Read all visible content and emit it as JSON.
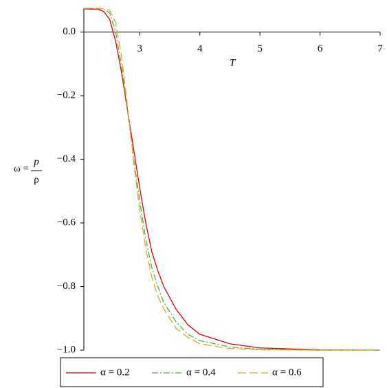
{
  "chart_data": {
    "type": "line",
    "xlabel": "T",
    "ylabel": {
      "lhs": "ω =",
      "numerator": "p",
      "denominator": "ρ"
    },
    "x": [
      2.07,
      2.3,
      2.4,
      2.5,
      2.6,
      2.7,
      2.8,
      2.9,
      3.0,
      3.1,
      3.2,
      3.3,
      3.4,
      3.6,
      3.8,
      4.0,
      4.5,
      5,
      6,
      7
    ],
    "series": [
      {
        "name": "α = 0.2",
        "color": "#e00000",
        "dash": "solid",
        "values": [
          0.073,
          0.072,
          0.065,
          0.04,
          -0.03,
          -0.13,
          -0.25,
          -0.37,
          -0.49,
          -0.6,
          -0.69,
          -0.75,
          -0.8,
          -0.87,
          -0.92,
          -0.95,
          -0.98,
          -0.993,
          -0.999,
          -1.0
        ]
      },
      {
        "name": "α = 0.4",
        "color": "#3cb83c",
        "dash": "dashdot",
        "values": [
          0.074,
          0.074,
          0.072,
          0.06,
          0.0,
          -0.11,
          -0.25,
          -0.4,
          -0.53,
          -0.65,
          -0.74,
          -0.8,
          -0.85,
          -0.91,
          -0.95,
          -0.97,
          -0.99,
          -0.997,
          -1.0,
          -1.0
        ]
      },
      {
        "name": "α = 0.6",
        "color": "#f0a020",
        "dash": "dash",
        "values": [
          0.075,
          0.075,
          0.074,
          0.068,
          0.03,
          -0.08,
          -0.24,
          -0.41,
          -0.56,
          -0.68,
          -0.77,
          -0.83,
          -0.87,
          -0.93,
          -0.96,
          -0.98,
          -0.995,
          -0.999,
          -1.0,
          -1.0
        ]
      }
    ],
    "xlim": [
      2.07,
      7
    ],
    "ylim": [
      -1.0,
      0.075
    ],
    "xticks": [
      3,
      4,
      5,
      6,
      7
    ],
    "yticks": [
      {
        "value": 0,
        "label": "0.0"
      },
      {
        "value": -0.2,
        "label": "−0.2"
      },
      {
        "value": -0.4,
        "label": "−0.4"
      },
      {
        "value": -0.6,
        "label": "−0.6"
      },
      {
        "value": -0.8,
        "label": "−0.8"
      },
      {
        "value": -1.0,
        "label": "−1.0"
      }
    ],
    "legend": "bottom"
  }
}
